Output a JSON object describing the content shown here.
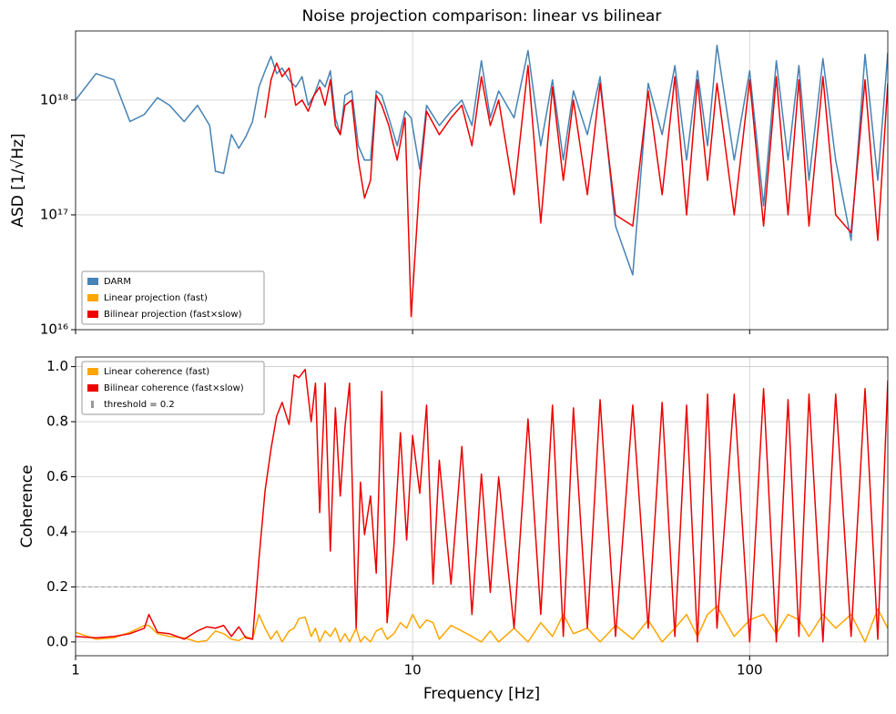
{
  "chart_data": [
    {
      "type": "line",
      "title": "Noise projection comparison: linear vs bilinear",
      "ylabel": "ASD [1/√Hz]",
      "xscale": "log",
      "yscale": "log",
      "grid": true,
      "legend": "lower left",
      "xlim": [
        1,
        257
      ],
      "xticks": [
        1,
        10,
        100
      ],
      "ylim": [
        1e+16,
        4e+18
      ],
      "yticks": [
        {
          "value": 1e+16,
          "label": "10¹⁶"
        },
        {
          "value": 1e+17,
          "label": "10¹⁷"
        },
        {
          "value": 1e+18,
          "label": "10¹⁸"
        }
      ],
      "x": [
        1,
        1.15,
        1.3,
        1.45,
        1.6,
        1.75,
        1.9,
        2.1,
        2.3,
        2.5,
        2.6,
        2.75,
        2.9,
        3.05,
        3.2,
        3.35,
        3.5,
        3.65,
        3.8,
        3.95,
        4.1,
        4.3,
        4.5,
        4.7,
        4.9,
        5.1,
        5.3,
        5.5,
        5.7,
        5.9,
        6.1,
        6.3,
        6.6,
        6.9,
        7.2,
        7.5,
        7.8,
        8.1,
        8.5,
        9,
        9.5,
        9.9,
        10.5,
        11,
        12,
        13,
        14,
        15,
        16,
        17,
        18,
        20,
        22,
        24,
        26,
        28,
        30,
        33,
        36,
        40,
        45,
        50,
        55,
        60,
        65,
        70,
        75,
        80,
        90,
        100,
        110,
        120,
        130,
        140,
        150,
        165,
        180,
        200,
        220,
        240,
        257
      ],
      "series": [
        {
          "name": "DARM",
          "color": "#4682b4",
          "values": [
            1e+18,
            1.7e+18,
            1.5e+18,
            6.5e+17,
            7.5e+17,
            1.05e+18,
            9e+17,
            6.5e+17,
            9e+17,
            6e+17,
            2.4e+17,
            2.3e+17,
            5e+17,
            3.8e+17,
            4.8e+17,
            6.5e+17,
            1.3e+18,
            1.8e+18,
            2.4e+18,
            1.7e+18,
            1.9e+18,
            1.5e+18,
            1.3e+18,
            1.6e+18,
            9e+17,
            1.1e+18,
            1.5e+18,
            1.3e+18,
            1.8e+18,
            7e+17,
            5e+17,
            1.1e+18,
            1.2e+18,
            4e+17,
            3e+17,
            3e+17,
            1.2e+18,
            1.1e+18,
            7e+17,
            4e+17,
            8e+17,
            7e+17,
            2.5e+17,
            9e+17,
            6e+17,
            8e+17,
            1e+18,
            6e+17,
            2.2e+18,
            7e+17,
            1.2e+18,
            7e+17,
            2.7e+18,
            4e+17,
            1.5e+18,
            3e+17,
            1.2e+18,
            5e+17,
            1.6e+18,
            8e+16,
            3e+16,
            1.4e+18,
            5e+17,
            2e+18,
            3e+17,
            1.8e+18,
            4e+17,
            3e+18,
            3e+17,
            1.8e+18,
            1.2e+17,
            2.2e+18,
            3e+17,
            2e+18,
            2e+17,
            2.3e+18,
            3e+17,
            6e+16,
            2.5e+18,
            2e+17,
            2.6e+18
          ]
        },
        {
          "name": "Linear projection (fast)",
          "color": "#ffa500",
          "values": [
            null,
            null,
            null,
            null,
            null,
            null,
            null,
            null,
            null,
            null,
            null,
            null,
            null,
            null,
            null,
            null,
            null,
            null,
            null,
            null,
            null,
            null,
            null,
            null,
            null,
            null,
            null,
            null,
            null,
            null,
            null,
            null,
            null,
            null,
            null,
            null,
            null,
            null,
            null,
            null,
            null,
            null,
            null,
            null,
            null,
            null,
            null,
            null,
            null,
            null,
            null,
            null,
            null,
            null,
            null,
            null,
            null,
            null,
            null,
            null,
            null,
            null,
            null,
            null,
            null,
            null,
            null,
            null,
            null,
            null,
            null,
            null,
            null,
            null,
            null,
            null,
            null,
            null,
            null,
            null,
            null
          ]
        },
        {
          "name": "Bilinear projection (fast×slow)",
          "color": "#ee0000",
          "values": [
            null,
            null,
            null,
            null,
            null,
            null,
            null,
            null,
            null,
            null,
            null,
            null,
            null,
            null,
            null,
            null,
            null,
            7e+17,
            1.5e+18,
            2.1e+18,
            1.6e+18,
            1.9e+18,
            9e+17,
            1e+18,
            8e+17,
            1.1e+18,
            1.3e+18,
            9e+17,
            1.5e+18,
            6e+17,
            5e+17,
            9e+17,
            1e+18,
            3e+17,
            1.4e+17,
            2e+17,
            1.1e+18,
            9e+17,
            6e+17,
            3e+17,
            7e+17,
            1.3e+16,
            2e+17,
            8e+17,
            5e+17,
            7e+17,
            9e+17,
            4e+17,
            1.6e+18,
            6e+17,
            1e+18,
            1.5e+17,
            2e+18,
            8.5e+16,
            1.3e+18,
            2e+17,
            1e+18,
            1.5e+17,
            1.4e+18,
            1e+17,
            8e+16,
            1.2e+18,
            1.5e+17,
            1.6e+18,
            1e+17,
            1.5e+18,
            2e+17,
            1.4e+18,
            1e+17,
            1.5e+18,
            8e+16,
            1.6e+18,
            1e+17,
            1.5e+18,
            8e+16,
            1.6e+18,
            1e+17,
            7e+16,
            1.5e+18,
            6e+16,
            1.4e+18
          ]
        }
      ]
    },
    {
      "type": "line",
      "ylabel": "Coherence",
      "xlabel": "Frequency [Hz]",
      "xscale": "log",
      "grid": true,
      "legend": "upper left",
      "xlim": [
        1,
        257
      ],
      "xticks": [
        1,
        10,
        100
      ],
      "ylim": [
        -0.05,
        1.035
      ],
      "yticks": [
        {
          "value": 0,
          "label": "0.0"
        },
        0.2,
        0.4,
        0.6,
        0.8,
        {
          "value": 1,
          "label": "1.0"
        }
      ],
      "threshold": {
        "value": 0.2,
        "label": "threshold = 0.2",
        "color": "#999999"
      },
      "x": [
        1,
        1.15,
        1.3,
        1.45,
        1.6,
        1.65,
        1.75,
        1.9,
        2.1,
        2.3,
        2.45,
        2.6,
        2.75,
        2.9,
        3.05,
        3.2,
        3.35,
        3.5,
        3.65,
        3.8,
        3.95,
        4.1,
        4.3,
        4.45,
        4.6,
        4.8,
        5.0,
        5.15,
        5.3,
        5.5,
        5.7,
        5.9,
        6.1,
        6.3,
        6.5,
        6.8,
        7.0,
        7.2,
        7.5,
        7.8,
        8.1,
        8.4,
        8.8,
        9.2,
        9.6,
        10,
        10.5,
        11,
        11.5,
        12,
        13,
        14,
        15,
        16,
        17,
        18,
        20,
        22,
        24,
        26,
        28,
        30,
        33,
        36,
        40,
        45,
        50,
        55,
        60,
        65,
        70,
        75,
        80,
        90,
        100,
        110,
        120,
        130,
        140,
        150,
        165,
        180,
        200,
        220,
        240,
        257
      ],
      "series": [
        {
          "name": "Linear coherence (fast)",
          "color": "#ffa500",
          "values": [
            0.035,
            0.01,
            0.015,
            0.035,
            0.06,
            0.06,
            0.03,
            0.02,
            0.015,
            0.0,
            0.005,
            0.04,
            0.03,
            0.01,
            0.005,
            0.02,
            0.01,
            0.1,
            0.05,
            0.01,
            0.04,
            0.0,
            0.04,
            0.05,
            0.085,
            0.09,
            0.02,
            0.05,
            0.0,
            0.04,
            0.02,
            0.05,
            0.0,
            0.03,
            0.0,
            0.05,
            0.0,
            0.02,
            0.0,
            0.04,
            0.05,
            0.01,
            0.03,
            0.07,
            0.05,
            0.1,
            0.05,
            0.08,
            0.07,
            0.01,
            0.06,
            0.04,
            0.02,
            0.0,
            0.04,
            0.0,
            0.05,
            0.0,
            0.07,
            0.02,
            0.1,
            0.03,
            0.05,
            0.0,
            0.06,
            0.01,
            0.08,
            0.0,
            0.05,
            0.1,
            0.02,
            0.1,
            0.13,
            0.02,
            0.08,
            0.1,
            0.03,
            0.1,
            0.08,
            0.02,
            0.1,
            0.05,
            0.1,
            0.0,
            0.12,
            0.05
          ]
        },
        {
          "name": "Bilinear coherence (fast×slow)",
          "color": "#ee0000",
          "values": [
            0.02,
            0.015,
            0.02,
            0.03,
            0.05,
            0.1,
            0.035,
            0.03,
            0.01,
            0.04,
            0.055,
            0.05,
            0.06,
            0.02,
            0.055,
            0.015,
            0.01,
            0.3,
            0.55,
            0.7,
            0.82,
            0.87,
            0.79,
            0.97,
            0.96,
            0.99,
            0.8,
            0.94,
            0.47,
            0.94,
            0.33,
            0.85,
            0.53,
            0.78,
            0.94,
            0.05,
            0.58,
            0.39,
            0.53,
            0.25,
            0.91,
            0.07,
            0.35,
            0.76,
            0.37,
            0.75,
            0.54,
            0.86,
            0.21,
            0.66,
            0.21,
            0.71,
            0.1,
            0.61,
            0.18,
            0.6,
            0.05,
            0.81,
            0.1,
            0.86,
            0.02,
            0.85,
            0.05,
            0.88,
            0.02,
            0.86,
            0.05,
            0.87,
            0.02,
            0.86,
            0.0,
            0.9,
            0.05,
            0.9,
            0.0,
            0.92,
            0.0,
            0.88,
            0.02,
            0.9,
            0.0,
            0.9,
            0.02,
            0.92,
            0.01,
            0.95
          ]
        }
      ]
    }
  ]
}
